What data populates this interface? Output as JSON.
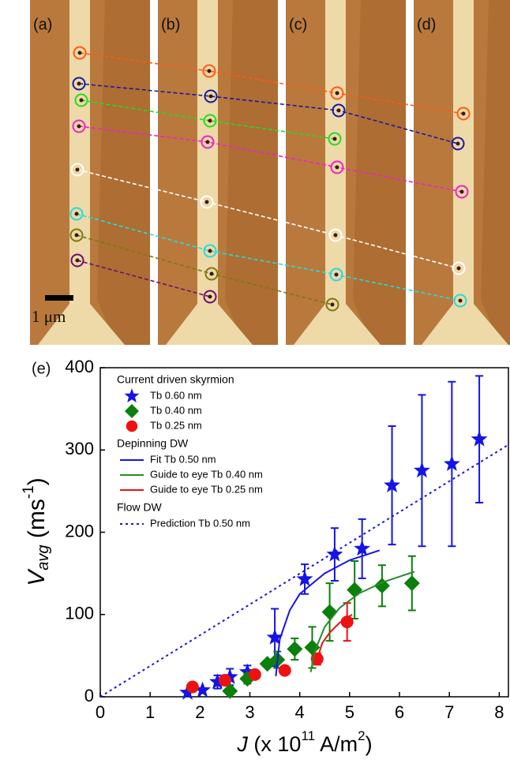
{
  "panel_labels": [
    "(a)",
    "(b)",
    "(c)",
    "(d)"
  ],
  "scale_bar": "1 μm",
  "chart_data": {
    "type": "scatter",
    "panel_label": "(e)",
    "xlabel": [
      "J",
      " (x 10",
      "11",
      " A/m",
      "2",
      ")"
    ],
    "ylabel": [
      "V",
      "avg",
      " (ms",
      "-1",
      ")"
    ],
    "legend_headings": [
      "Current driven skyrmion",
      "Depinning DW",
      "Flow DW"
    ],
    "xlim": [
      0,
      8.2
    ],
    "ylim": [
      0,
      400
    ],
    "xticks": [
      0,
      1,
      2,
      3,
      4,
      5,
      6,
      7,
      8
    ],
    "yticks": [
      0,
      100,
      200,
      300,
      400
    ],
    "series": [
      {
        "name": "Tb 0.60 nm",
        "marker": "star",
        "color": "#1414e6",
        "x": [
          1.75,
          2.05,
          2.35,
          2.6,
          2.95,
          3.5,
          4.1,
          4.7,
          5.25,
          5.85,
          6.45,
          7.05,
          7.6
        ],
        "values": [
          5,
          8,
          18,
          24,
          30,
          72,
          143,
          173,
          180,
          257,
          275,
          283,
          313
        ],
        "errors": [
          null,
          null,
          8,
          10,
          8,
          35,
          18,
          32,
          36,
          72,
          92,
          100,
          77
        ]
      },
      {
        "name": "Tb 0.40 nm",
        "marker": "diamond",
        "color": "#0b800b",
        "x": [
          2.6,
          2.95,
          3.35,
          3.55,
          3.9,
          4.25,
          4.6,
          5.1,
          5.65,
          6.25
        ],
        "values": [
          7,
          22,
          40,
          45,
          58,
          60,
          103,
          130,
          135,
          138
        ],
        "errors": [
          null,
          6,
          null,
          10,
          13,
          25,
          35,
          35,
          25,
          33
        ]
      },
      {
        "name": "Tb 0.25 nm",
        "marker": "circle",
        "color": "#ee1111",
        "x": [
          1.85,
          2.5,
          3.1,
          3.7,
          4.35,
          4.95
        ],
        "values": [
          12,
          20,
          27,
          32,
          46,
          91
        ],
        "errors": [
          null,
          null,
          null,
          null,
          7,
          23
        ]
      },
      {
        "name": "Fit Tb 0.50 nm",
        "marker": "line",
        "color": "#1414e6",
        "x": [
          3.52,
          3.6,
          3.8,
          4.0,
          4.5,
          5.0,
          5.6
        ],
        "values": [
          25,
          70,
          105,
          125,
          150,
          166,
          178
        ]
      },
      {
        "name": "Guide to eye Tb 0.40 nm",
        "marker": "line",
        "color": "#2a8a2a",
        "x": [
          4.22,
          4.3,
          4.5,
          4.8,
          5.2,
          5.7,
          6.3
        ],
        "values": [
          30,
          55,
          85,
          108,
          126,
          140,
          152
        ]
      },
      {
        "name": "Guide to eye Tb 0.25 nm",
        "marker": "line",
        "color": "#ee1111",
        "x": [
          4.32,
          4.45,
          4.6,
          4.8,
          5.05
        ],
        "values": [
          40,
          65,
          78,
          90,
          100
        ]
      },
      {
        "name": "Prediction Tb 0.50 nm",
        "marker": "dotted",
        "color": "#1414e6",
        "x": [
          0,
          8.2
        ],
        "values": [
          0,
          307
        ]
      }
    ]
  }
}
